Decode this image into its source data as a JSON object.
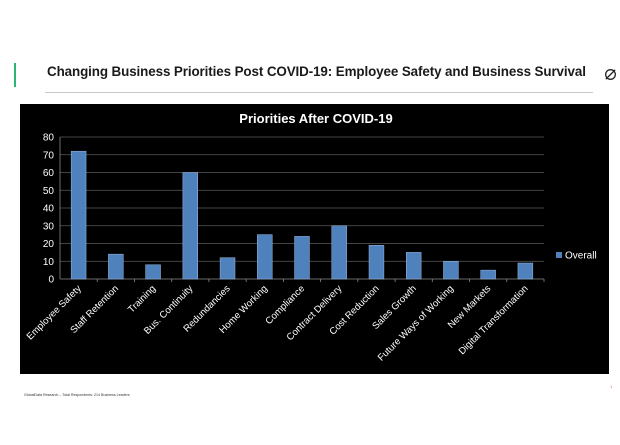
{
  "slide": {
    "title": "Changing Business Priorities Post COVID-19: Employee Safety and Business Survival",
    "footnote": "GlobalData Research – Total Respondents: 214 Business Leaders",
    "page_number": "1",
    "accent_color": "#2bb673",
    "logo_icon": "globaldata-logo-icon"
  },
  "chart_data": {
    "type": "bar",
    "title": "Priorities After COVID-19",
    "categories": [
      "Employee Safety",
      "Staff Retention",
      "Training",
      "Bus. Continuity",
      "Redundancies",
      "Home Working",
      "Compliance",
      "Contract Delivery",
      "Cost Reduction",
      "Sales Growth",
      "Future Ways of Working",
      "New Markets",
      "Digital Transformation"
    ],
    "series": [
      {
        "name": "Overall",
        "values": [
          72,
          14,
          8,
          60,
          12,
          25,
          24,
          30,
          19,
          15,
          10,
          5,
          9
        ],
        "color": "#4f81bd"
      }
    ],
    "ylim": [
      0,
      80
    ],
    "yticks": [
      0,
      10,
      20,
      30,
      40,
      50,
      60,
      70,
      80
    ],
    "grid": true,
    "legend_position": "right",
    "background": "#000000",
    "text_color": "#ffffff"
  }
}
